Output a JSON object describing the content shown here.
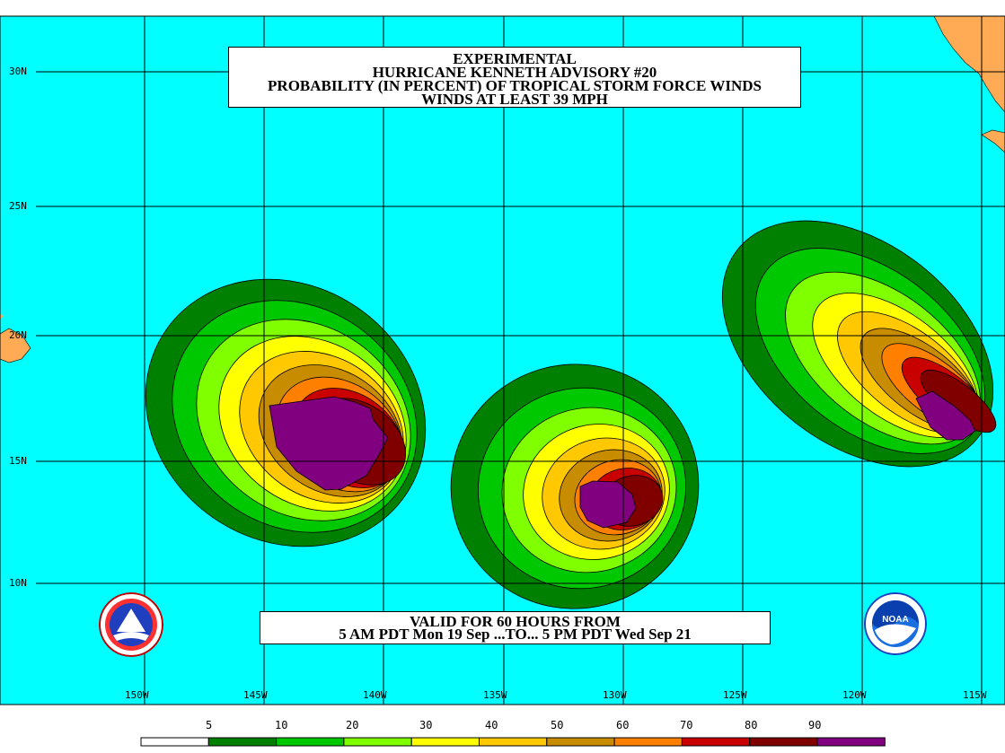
{
  "title": {
    "line1": "EXPERIMENTAL",
    "line2": "HURRICANE KENNETH ADVISORY #20",
    "line3": "PROBABILITY (IN PERCENT) OF TROPICAL STORM FORCE WINDS",
    "line4": "WINDS AT LEAST 39 MPH"
  },
  "valid": {
    "line1": "VALID FOR 60 HOURS FROM",
    "line2": "5 AM PDT Mon 19 Sep ...TO... 5 PM PDT Wed Sep 21"
  },
  "latitudes": [
    "30N",
    "25N",
    "20N",
    "15N",
    "10N"
  ],
  "longitudes": [
    "150W",
    "145W",
    "140W",
    "135W",
    "130W",
    "125W",
    "120W",
    "115W"
  ],
  "legend": {
    "labels": [
      "5",
      "10",
      "20",
      "30",
      "40",
      "50",
      "60",
      "70",
      "80",
      "90"
    ],
    "colors": [
      "#ffffff",
      "#008000",
      "#00c800",
      "#80ff00",
      "#ffff00",
      "#ffc800",
      "#c88c00",
      "#ff8000",
      "#c80000",
      "#800000",
      "#800080"
    ]
  },
  "colors": {
    "ocean": "#00ffff",
    "land": "#ffaa55",
    "grid": "#000000"
  },
  "logos": [
    "nws-logo",
    "noaa-logo"
  ]
}
